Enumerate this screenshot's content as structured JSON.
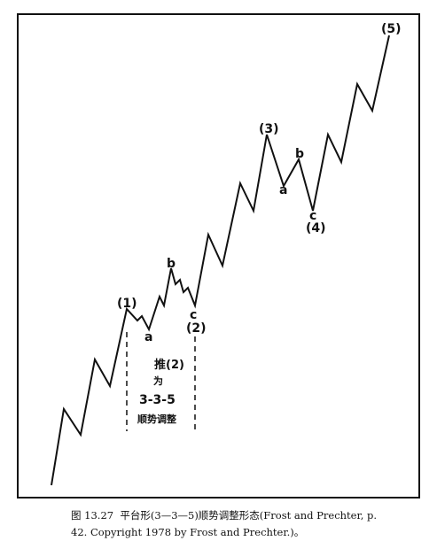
{
  "labels": {
    "wave1": "(1)",
    "wave2": "(2)",
    "wave3": "(3)",
    "wave4": "(4)",
    "wave5": "(5)",
    "a1": "a",
    "b1": "b",
    "c1": "c",
    "a2": "a",
    "b2": "b",
    "c2": "c"
  },
  "note": {
    "line1": "推(2)",
    "line2": "为",
    "line3": "3-3-5",
    "line4": "顺势调整"
  },
  "caption": {
    "line1": "图 13.27  平台形(3—3—5)顺势调整形态(Frost and Prechter, p.",
    "line2": "42. Copyright 1978 by Frost and Prechter.)。"
  }
}
